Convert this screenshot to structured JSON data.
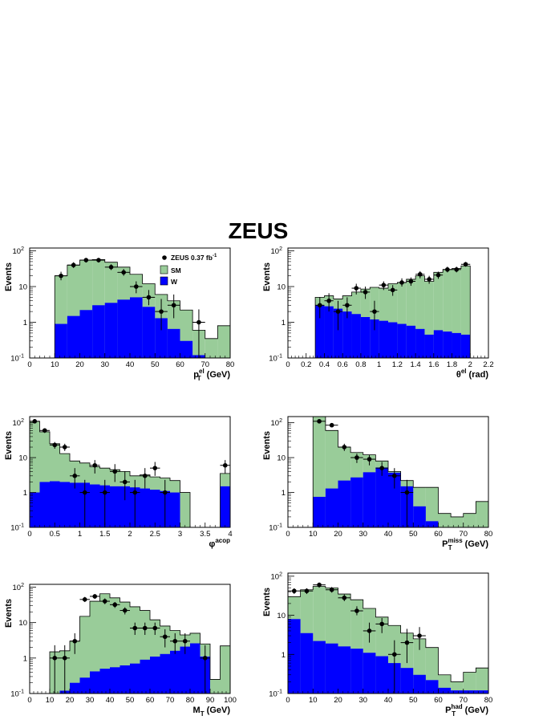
{
  "figure_title": "ZEUS",
  "colors": {
    "sm": "#99cc99",
    "w": "#0000ff",
    "data": "#000000"
  },
  "legend": {
    "data_label": "ZEUS 0.37 fb",
    "data_label_sup": "-1",
    "sm_label": "SM",
    "w_label": "W"
  },
  "chart_data": [
    {
      "type": "bar",
      "log_y": true,
      "xlabel": "p",
      "xlabel_sup": "el",
      "xlabel_sub": "T",
      "xlabel_unit": " (GeV)",
      "ylabel": "Events",
      "xlim": [
        0,
        80
      ],
      "ylim": [
        0.1,
        120
      ],
      "xticks": [
        0,
        10,
        20,
        30,
        40,
        50,
        60,
        70,
        80
      ],
      "xticklabels": [
        "0",
        "10",
        "20",
        "30",
        "40",
        "50",
        "60",
        "70",
        "80"
      ],
      "bin_edges": [
        10,
        15,
        20,
        25,
        30,
        35,
        40,
        45,
        50,
        55,
        60,
        65,
        70,
        75,
        80
      ],
      "sm": [
        20,
        40,
        55,
        57,
        48,
        35,
        22,
        12,
        6,
        4,
        2.2,
        0.6,
        0.35,
        0.8
      ],
      "w": [
        0.9,
        1.5,
        2.2,
        3.0,
        3.5,
        4.3,
        5.0,
        2.7,
        1.3,
        0.65,
        0.3,
        0.12,
        0.1,
        0.1
      ],
      "data_points": [
        {
          "x": 12.5,
          "y": 20,
          "ylo": 15,
          "yhi": 26
        },
        {
          "x": 17.5,
          "y": 40,
          "ylo": 33,
          "yhi": 48
        },
        {
          "x": 22.5,
          "y": 55,
          "ylo": 47,
          "yhi": 63
        },
        {
          "x": 27.5,
          "y": 55,
          "ylo": 47,
          "yhi": 63
        },
        {
          "x": 32.5,
          "y": 35,
          "ylo": 29,
          "yhi": 42
        },
        {
          "x": 37.5,
          "y": 25,
          "ylo": 20,
          "yhi": 31
        },
        {
          "x": 42.5,
          "y": 10,
          "ylo": 6.5,
          "yhi": 14
        },
        {
          "x": 47.5,
          "y": 5,
          "ylo": 3,
          "yhi": 8
        },
        {
          "x": 52.5,
          "y": 2,
          "ylo": 0.6,
          "yhi": 4.5
        },
        {
          "x": 57.5,
          "y": 3,
          "ylo": 1.3,
          "yhi": 6
        },
        {
          "x": 67.5,
          "y": 1,
          "ylo": 0.1,
          "yhi": 2.3
        }
      ]
    },
    {
      "type": "bar",
      "log_y": true,
      "xlabel": "θ",
      "xlabel_sup": "el",
      "xlabel_sub": "",
      "xlabel_unit": " (rad)",
      "ylabel": "Events",
      "xlim": [
        0,
        2.2
      ],
      "ylim": [
        0.1,
        120
      ],
      "xticks": [
        0,
        0.2,
        0.4,
        0.6,
        0.8,
        1,
        1.2,
        1.4,
        1.6,
        1.8,
        2,
        2.2
      ],
      "xticklabels": [
        "0",
        "0.2",
        "0.4",
        "0.6",
        "0.8",
        "1",
        "1.2",
        "1.4",
        "1.6",
        "1.8",
        "2",
        "2.2"
      ],
      "bin_edges": [
        0.3,
        0.4,
        0.5,
        0.6,
        0.7,
        0.8,
        0.9,
        1.0,
        1.1,
        1.2,
        1.3,
        1.4,
        1.5,
        1.6,
        1.7,
        1.8,
        1.9,
        2.0
      ],
      "sm": [
        5,
        5.5,
        4.5,
        5.5,
        7,
        8.5,
        9.5,
        9,
        12,
        13,
        16,
        20,
        14,
        25,
        30,
        32,
        38
      ],
      "w": [
        3,
        2.8,
        2.4,
        2,
        1.7,
        1.4,
        1.2,
        1.1,
        1.0,
        0.9,
        0.8,
        0.65,
        0.45,
        0.6,
        0.55,
        0.5,
        0.45
      ],
      "data_points": [
        {
          "x": 0.35,
          "y": 3,
          "ylo": 1.3,
          "yhi": 5
        },
        {
          "x": 0.45,
          "y": 4,
          "ylo": 2,
          "yhi": 6.5
        },
        {
          "x": 0.55,
          "y": 2,
          "ylo": 0.6,
          "yhi": 4
        },
        {
          "x": 0.65,
          "y": 3,
          "ylo": 1.3,
          "yhi": 5
        },
        {
          "x": 0.75,
          "y": 9,
          "ylo": 6,
          "yhi": 12
        },
        {
          "x": 0.85,
          "y": 7,
          "ylo": 4.5,
          "yhi": 10
        },
        {
          "x": 0.95,
          "y": 2,
          "ylo": 0.6,
          "yhi": 4
        },
        {
          "x": 1.05,
          "y": 11,
          "ylo": 8,
          "yhi": 14
        },
        {
          "x": 1.15,
          "y": 8,
          "ylo": 5.5,
          "yhi": 11
        },
        {
          "x": 1.25,
          "y": 13,
          "ylo": 10,
          "yhi": 17
        },
        {
          "x": 1.35,
          "y": 14,
          "ylo": 10.5,
          "yhi": 18
        },
        {
          "x": 1.45,
          "y": 22,
          "ylo": 17,
          "yhi": 27
        },
        {
          "x": 1.55,
          "y": 16,
          "ylo": 12,
          "yhi": 20
        },
        {
          "x": 1.65,
          "y": 21,
          "ylo": 16.5,
          "yhi": 26
        },
        {
          "x": 1.75,
          "y": 30,
          "ylo": 25,
          "yhi": 36
        },
        {
          "x": 1.85,
          "y": 30,
          "ylo": 25,
          "yhi": 36
        },
        {
          "x": 1.95,
          "y": 42,
          "ylo": 36,
          "yhi": 49
        }
      ]
    },
    {
      "type": "bar",
      "log_y": true,
      "xlabel": "φ",
      "xlabel_sup": "acop",
      "xlabel_sub": "",
      "xlabel_unit": "",
      "ylabel": "Events",
      "xlim": [
        0,
        4
      ],
      "ylim": [
        0.1,
        150
      ],
      "xticks": [
        0,
        0.5,
        1,
        1.5,
        2,
        2.5,
        3,
        3.5,
        4
      ],
      "xticklabels": [
        "0",
        "0.5",
        "1",
        "1.5",
        "2",
        "2.5",
        "3",
        "3.5",
        "4"
      ],
      "bin_edges": [
        0,
        0.2,
        0.4,
        0.6,
        0.8,
        1.0,
        1.2,
        1.4,
        1.6,
        1.8,
        2.0,
        2.2,
        2.4,
        2.6,
        2.8,
        3.0,
        3.2,
        3.4,
        3.6,
        3.8,
        4.0
      ],
      "sm": [
        110,
        55,
        25,
        13,
        8,
        7,
        5.5,
        5,
        4.5,
        4,
        3,
        3.2,
        2.8,
        2.6,
        2.2,
        1.0,
        0.1,
        0.1,
        0.1,
        3.5
      ],
      "w": [
        1,
        2,
        2.1,
        2.0,
        1.9,
        1.9,
        1.7,
        1.6,
        1.5,
        1.5,
        1.4,
        1.3,
        1.2,
        1.1,
        1.0,
        0.1,
        0.1,
        0.1,
        0.1,
        1.5
      ],
      "data_points": [
        {
          "x": 0.1,
          "y": 110,
          "ylo": 98,
          "yhi": 122
        },
        {
          "x": 0.3,
          "y": 60,
          "ylo": 51,
          "yhi": 69
        },
        {
          "x": 0.5,
          "y": 23,
          "ylo": 18,
          "yhi": 28
        },
        {
          "x": 0.7,
          "y": 20,
          "ylo": 15.5,
          "yhi": 25
        },
        {
          "x": 0.9,
          "y": 3,
          "ylo": 1.3,
          "yhi": 5
        },
        {
          "x": 1.1,
          "y": 1,
          "ylo": 0.1,
          "yhi": 2.3
        },
        {
          "x": 1.3,
          "y": 6,
          "ylo": 3.5,
          "yhi": 8.5
        },
        {
          "x": 1.5,
          "y": 1,
          "ylo": 0.1,
          "yhi": 2.3
        },
        {
          "x": 1.7,
          "y": 4,
          "ylo": 2,
          "yhi": 6.5
        },
        {
          "x": 1.9,
          "y": 2,
          "ylo": 0.6,
          "yhi": 4
        },
        {
          "x": 2.1,
          "y": 1,
          "ylo": 0.1,
          "yhi": 2.3
        },
        {
          "x": 2.3,
          "y": 3,
          "ylo": 1.3,
          "yhi": 5
        },
        {
          "x": 2.5,
          "y": 5,
          "ylo": 3,
          "yhi": 7.5
        },
        {
          "x": 2.7,
          "y": 1,
          "ylo": 0.1,
          "yhi": 2.3
        },
        {
          "x": 3.9,
          "y": 6,
          "ylo": 3.5,
          "yhi": 8.5
        }
      ]
    },
    {
      "type": "bar",
      "log_y": true,
      "xlabel": "P",
      "xlabel_sup": "miss",
      "xlabel_sub": "T",
      "xlabel_unit": " (GeV)",
      "ylabel": "Events",
      "xlim": [
        0,
        80
      ],
      "ylim": [
        0.1,
        150
      ],
      "xticks": [
        0,
        10,
        20,
        30,
        40,
        50,
        60,
        70,
        80
      ],
      "xticklabels": [
        "0",
        "10",
        "20",
        "30",
        "40",
        "50",
        "60",
        "70",
        "80"
      ],
      "bin_edges": [
        10,
        15,
        20,
        25,
        30,
        35,
        40,
        45,
        50,
        55,
        60,
        65,
        70,
        75,
        80
      ],
      "sm": [
        150,
        60,
        20,
        14,
        12,
        8,
        4,
        2.2,
        1.4,
        1.4,
        0.25,
        0.2,
        0.25,
        0.55
      ],
      "w": [
        0.75,
        1.3,
        2.2,
        2.7,
        3.8,
        5.2,
        3.7,
        1.5,
        0.4,
        0.15,
        0.1,
        0.1,
        0.1,
        0.1
      ],
      "data_points": [
        {
          "x": 12.5,
          "y": 110,
          "ylo": 98,
          "yhi": 122
        },
        {
          "x": 17.5,
          "y": 85,
          "ylo": 75,
          "yhi": 95
        },
        {
          "x": 22.5,
          "y": 20,
          "ylo": 15.5,
          "yhi": 25
        },
        {
          "x": 27.5,
          "y": 10,
          "ylo": 7,
          "yhi": 13
        },
        {
          "x": 32.5,
          "y": 9,
          "ylo": 6,
          "yhi": 12
        },
        {
          "x": 37.5,
          "y": 5,
          "ylo": 3,
          "yhi": 7.5
        },
        {
          "x": 42.5,
          "y": 3,
          "ylo": 1.3,
          "yhi": 5
        },
        {
          "x": 47.5,
          "y": 1,
          "ylo": 0.1,
          "yhi": 2.3
        }
      ]
    },
    {
      "type": "bar",
      "log_y": true,
      "xlabel": "M",
      "xlabel_sup": "",
      "xlabel_sub": "T",
      "xlabel_unit": " (GeV)",
      "ylabel": "Events",
      "xlim": [
        0,
        100
      ],
      "ylim": [
        0.1,
        120
      ],
      "xticks": [
        0,
        10,
        20,
        30,
        40,
        50,
        60,
        70,
        80,
        90,
        100
      ],
      "xticklabels": [
        "0",
        "10",
        "20",
        "30",
        "40",
        "50",
        "60",
        "70",
        "80",
        "90",
        "100"
      ],
      "bin_edges": [
        10,
        15,
        20,
        25,
        30,
        35,
        40,
        45,
        50,
        55,
        60,
        65,
        70,
        75,
        80,
        85,
        90,
        95,
        100
      ],
      "sm": [
        1.5,
        1.6,
        3,
        15,
        40,
        65,
        50,
        38,
        28,
        22,
        12,
        8,
        6,
        4.5,
        5,
        2.5,
        0.25,
        2.2
      ],
      "w": [
        0.1,
        0.12,
        0.2,
        0.28,
        0.42,
        0.5,
        0.55,
        0.62,
        0.7,
        0.9,
        1.1,
        1.3,
        1.6,
        2.1,
        2.6,
        1.1,
        0.1,
        0.1
      ],
      "data_points": [
        {
          "x": 12.5,
          "y": 1,
          "ylo": 0.1,
          "yhi": 2.3
        },
        {
          "x": 17.5,
          "y": 1,
          "ylo": 0.1,
          "yhi": 2.3
        },
        {
          "x": 22.5,
          "y": 3,
          "ylo": 1.3,
          "yhi": 5
        },
        {
          "x": 27.5,
          "y": 45,
          "ylo": 38,
          "yhi": 53
        },
        {
          "x": 32.5,
          "y": 55,
          "ylo": 47,
          "yhi": 63
        },
        {
          "x": 37.5,
          "y": 40,
          "ylo": 33,
          "yhi": 48
        },
        {
          "x": 42.5,
          "y": 32,
          "ylo": 26,
          "yhi": 38
        },
        {
          "x": 47.5,
          "y": 22,
          "ylo": 17,
          "yhi": 27
        },
        {
          "x": 52.5,
          "y": 7,
          "ylo": 4.5,
          "yhi": 10
        },
        {
          "x": 57.5,
          "y": 7,
          "ylo": 4.5,
          "yhi": 10
        },
        {
          "x": 62.5,
          "y": 7,
          "ylo": 4.5,
          "yhi": 10
        },
        {
          "x": 67.5,
          "y": 4,
          "ylo": 2,
          "yhi": 6.5
        },
        {
          "x": 72.5,
          "y": 3,
          "ylo": 1.3,
          "yhi": 5
        },
        {
          "x": 77.5,
          "y": 3,
          "ylo": 1.3,
          "yhi": 5
        },
        {
          "x": 87.5,
          "y": 1,
          "ylo": 0.1,
          "yhi": 2.3
        }
      ]
    },
    {
      "type": "bar",
      "log_y": true,
      "xlabel": "P",
      "xlabel_sup": "had",
      "xlabel_sub": "T",
      "xlabel_unit": " (GeV)",
      "ylabel": "Events",
      "xlim": [
        0,
        80
      ],
      "ylim": [
        0.1,
        120
      ],
      "xticks": [
        0,
        10,
        20,
        30,
        40,
        50,
        60,
        70,
        80
      ],
      "xticklabels": [
        "0",
        "10",
        "20",
        "30",
        "40",
        "50",
        "60",
        "70",
        "80"
      ],
      "bin_edges": [
        0,
        5,
        10,
        15,
        20,
        25,
        30,
        35,
        40,
        45,
        50,
        55,
        60,
        65,
        70,
        75,
        80
      ],
      "sm": [
        30,
        45,
        55,
        50,
        35,
        25,
        15,
        9,
        5.5,
        3.5,
        2.5,
        1.5,
        0.3,
        0.2,
        0.35,
        0.45
      ],
      "w": [
        8,
        3.5,
        2.2,
        1.9,
        1.6,
        1.4,
        1.1,
        0.9,
        0.6,
        0.45,
        0.3,
        0.22,
        0.14,
        0.12,
        0.12,
        0.12
      ],
      "data_points": [
        {
          "x": 2.5,
          "y": 42,
          "ylo": 35,
          "yhi": 49
        },
        {
          "x": 7.5,
          "y": 42,
          "ylo": 35,
          "yhi": 49
        },
        {
          "x": 12.5,
          "y": 60,
          "ylo": 51,
          "yhi": 69
        },
        {
          "x": 17.5,
          "y": 45,
          "ylo": 38,
          "yhi": 53
        },
        {
          "x": 22.5,
          "y": 28,
          "ylo": 23,
          "yhi": 34
        },
        {
          "x": 27.5,
          "y": 13,
          "ylo": 10,
          "yhi": 17
        },
        {
          "x": 32.5,
          "y": 4,
          "ylo": 2,
          "yhi": 6.5
        },
        {
          "x": 37.5,
          "y": 6,
          "ylo": 3.5,
          "yhi": 8.5
        },
        {
          "x": 42.5,
          "y": 1,
          "ylo": 0.1,
          "yhi": 2.3
        },
        {
          "x": 47.5,
          "y": 2,
          "ylo": 0.6,
          "yhi": 4.5
        },
        {
          "x": 52.5,
          "y": 3,
          "ylo": 1.3,
          "yhi": 5
        }
      ]
    }
  ]
}
